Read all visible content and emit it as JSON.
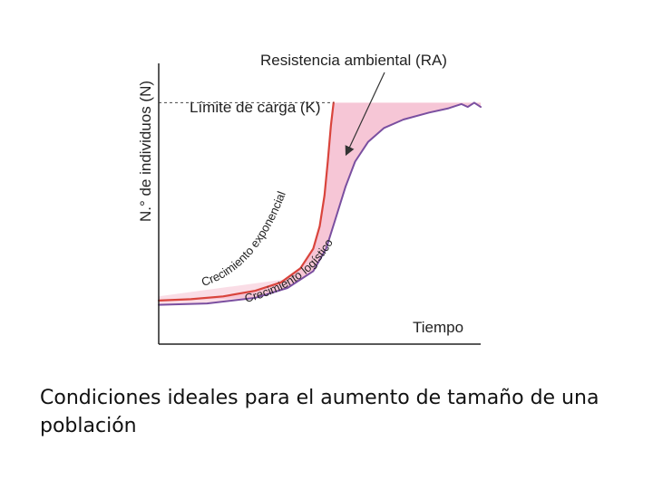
{
  "caption": "Condiciones ideales para el aumento de tamaño de una población",
  "chart_data": {
    "type": "line",
    "title": "",
    "xlabel": "Tiempo",
    "ylabel": "N.° de individuos (N)",
    "grid": false,
    "xlim": [
      0,
      100
    ],
    "ylim": [
      0,
      100
    ],
    "reference_line": {
      "label": "Límite de carga (K)",
      "value": 86
    },
    "series": [
      {
        "name": "Crecimiento exponencial",
        "color": "#d9443c",
        "x": [
          0,
          10,
          20,
          30,
          38,
          44,
          48,
          50,
          51.5,
          52.5,
          53.5,
          54.3
        ],
        "y": [
          15.5,
          16,
          17,
          19,
          22,
          27,
          34,
          42,
          53,
          65,
          78,
          86
        ]
      },
      {
        "name": "Crecimiento logístico",
        "color": "#7a4fa0",
        "x": [
          0,
          15,
          30,
          40,
          48,
          52,
          55,
          58,
          61,
          65,
          70,
          76,
          84,
          90,
          94,
          96,
          98,
          100
        ],
        "y": [
          14,
          14.5,
          16.5,
          20,
          26,
          34,
          45,
          56,
          65,
          72,
          77,
          80,
          82.5,
          84,
          85.5,
          84.5,
          86,
          84.5
        ]
      }
    ],
    "shaded_region": {
      "label": "Resistencia ambiental (RA)",
      "color": "#f6c6d6"
    },
    "annotations": [
      "Resistencia ambiental (RA)",
      "Límite de carga (K)",
      "Crecimiento exponencial",
      "Crecimiento logístico"
    ]
  }
}
